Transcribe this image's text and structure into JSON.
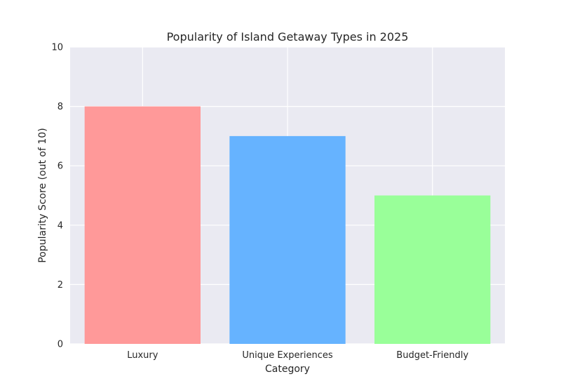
{
  "chart_data": {
    "type": "bar",
    "title": "Popularity of Island Getaway Types in 2025",
    "xlabel": "Category",
    "ylabel": "Popularity Score (out of 10)",
    "categories": [
      "Luxury",
      "Unique Experiences",
      "Budget-Friendly"
    ],
    "values": [
      8,
      7,
      5
    ],
    "colors": [
      "#ff9999",
      "#66b3ff",
      "#99ff99"
    ],
    "ylim": [
      0,
      10
    ],
    "yticks": [
      0,
      2,
      4,
      6,
      8,
      10
    ],
    "grid": true,
    "background": "#eaeaf2"
  }
}
